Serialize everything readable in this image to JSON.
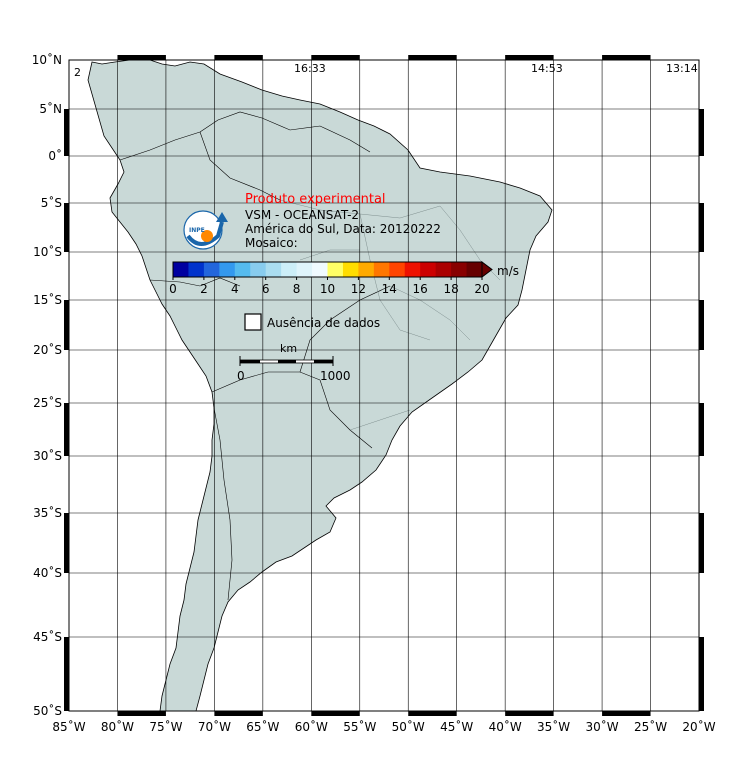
{
  "map": {
    "corner_label": "2",
    "orbit_times": [
      "16:33",
      "14:53",
      "13:14"
    ],
    "lat_labels": [
      "10˚N",
      "5˚N",
      "0˚",
      "5˚S",
      "10˚S",
      "15˚S",
      "20˚S",
      "25˚S",
      "30˚S",
      "35˚S",
      "40˚S",
      "45˚S",
      "50˚S"
    ],
    "lon_labels": [
      "85˚W",
      "80˚W",
      "75˚W",
      "70˚W",
      "65˚W",
      "60˚W",
      "55˚W",
      "50˚W",
      "45˚W",
      "40˚W",
      "35˚W",
      "30˚W",
      "25˚W",
      "20˚W"
    ],
    "extent": {
      "lon_min": -85,
      "lon_max": -20,
      "lat_min": -50,
      "lat_max": 10
    },
    "land_color": "#c9d9d7",
    "ocean_color": "#ffffff"
  },
  "legend": {
    "experimental": "Produto experimental",
    "sensor": "VSM - OCEANSAT-2",
    "region_date": "América do Sul, Data: 20120222",
    "mosaic": "Mosaico:",
    "unit": "m/s",
    "scale_ticks": [
      "0",
      "2",
      "4",
      "6",
      "8",
      "10",
      "12",
      "14",
      "16",
      "18",
      "20"
    ],
    "scale_range": [
      0,
      20
    ],
    "colors": [
      "#0000a0",
      "#0033cc",
      "#2266dd",
      "#3399ee",
      "#55bbee",
      "#88ccee",
      "#aaddf0",
      "#cceef8",
      "#dff4fb",
      "#f0faff",
      "#ffff66",
      "#ffdd00",
      "#ffaa00",
      "#ff7700",
      "#ff4400",
      "#ee1100",
      "#cc0000",
      "#aa0000",
      "#880000",
      "#660000"
    ],
    "logo_text": "INPE",
    "no_data": "Ausência de dados",
    "scalebar_unit": "km",
    "scalebar_start": "0",
    "scalebar_end": "1000"
  }
}
